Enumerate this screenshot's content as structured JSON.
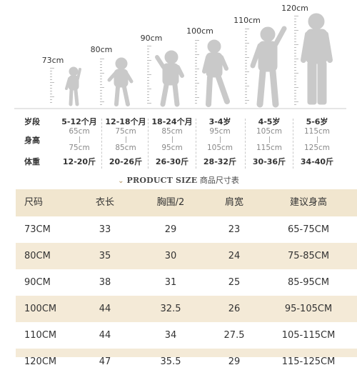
{
  "figures": [
    {
      "height_label": "73cm"
    },
    {
      "height_label": "80cm"
    },
    {
      "height_label": "90cm"
    },
    {
      "height_label": "100cm"
    },
    {
      "height_label": "110cm"
    },
    {
      "height_label": "120cm"
    }
  ],
  "spec": {
    "row_labels": {
      "age": "岁段",
      "height": "身高",
      "weight": "体重"
    },
    "columns": [
      {
        "age": "5-12个月",
        "h_min": "65cm",
        "h_max": "75cm",
        "weight": "12-20斤"
      },
      {
        "age": "12-18个月",
        "h_min": "75cm",
        "h_max": "85cm",
        "weight": "20-26斤"
      },
      {
        "age": "18-24个月",
        "h_min": "85cm",
        "h_max": "95cm",
        "weight": "26-30斤"
      },
      {
        "age": "3-4岁",
        "h_min": "95cm",
        "h_max": "105cm",
        "weight": "28-32斤"
      },
      {
        "age": "4-5岁",
        "h_min": "105cm",
        "h_max": "115cm",
        "weight": "30-36斤"
      },
      {
        "age": "5-6岁",
        "h_min": "115cm",
        "h_max": "125cm",
        "weight": "34-40斤"
      }
    ]
  },
  "title": {
    "en": "PRODUCT SIZE",
    "cn": "商品尺寸表"
  },
  "table": {
    "headers": [
      "尺码",
      "衣长",
      "胸围/2",
      "肩宽",
      "建议身高"
    ],
    "rows": [
      [
        "73CM",
        "33",
        "29",
        "23",
        "65-75CM"
      ],
      [
        "80CM",
        "35",
        "30",
        "24",
        "75-85CM"
      ],
      [
        "90CM",
        "38",
        "31",
        "25",
        "85-95CM"
      ],
      [
        "100CM",
        "44",
        "32.5",
        "26",
        "95-105CM"
      ],
      [
        "110CM",
        "44",
        "34",
        "27.5",
        "105-115CM"
      ],
      [
        "120CM",
        "47",
        "35.5",
        "29",
        "115-125CM"
      ]
    ]
  },
  "colors": {
    "figure": "#c9c9c9",
    "row_shade": "#f4ead7",
    "header_bg": "#f1e6cf",
    "accent": "#b08d57"
  }
}
